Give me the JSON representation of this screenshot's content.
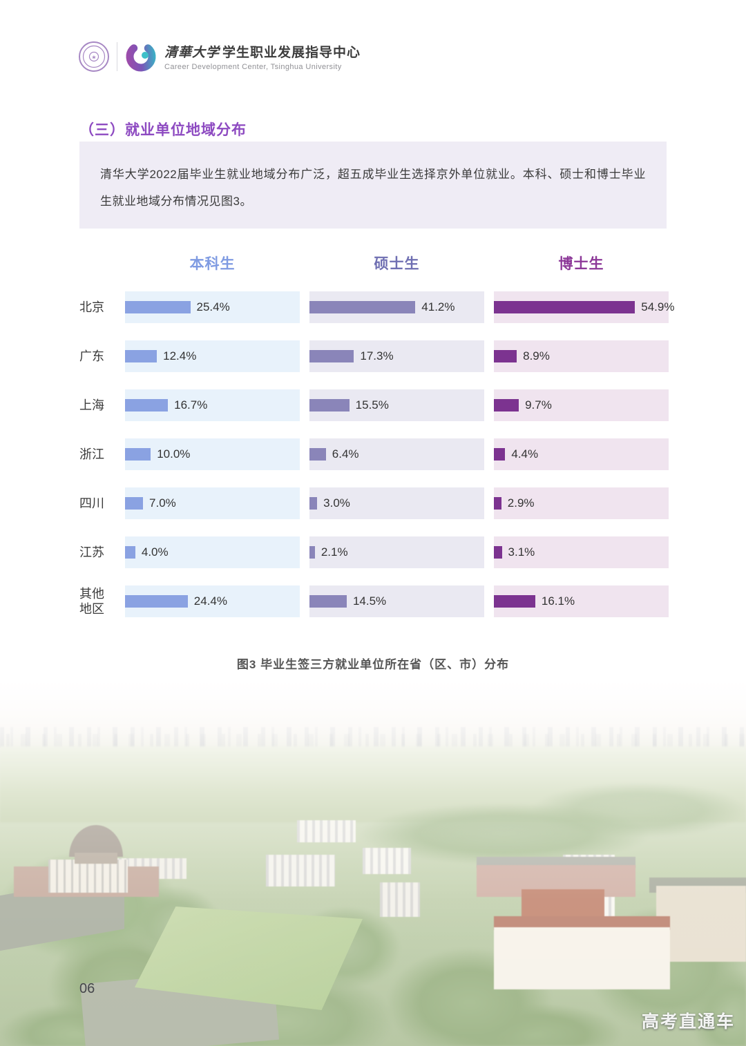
{
  "header": {
    "brand_calligraphy": "清華大学",
    "brand_dept": "学生职业发展指导中心",
    "brand_en": "Career Development Center, Tsinghua University"
  },
  "section": {
    "title": "（三）就业单位地域分布"
  },
  "intro": {
    "text": "清华大学2022届毕业生就业地域分布广泛，超五成毕业生选择京外单位就业。本科、硕士和博士毕业生就业地域分布情况见图3。"
  },
  "chart_data": {
    "type": "bar",
    "orientation": "horizontal",
    "title": "图3  毕业生签三方就业单位所在省（区、市）分布",
    "categories": [
      "北京",
      "广东",
      "上海",
      "浙江",
      "四川",
      "江苏",
      "其他地区"
    ],
    "series": [
      {
        "name": "本科生",
        "color": "#8aa2e2",
        "panel_color": "#e8f2fb",
        "label_color": "#7f9be2",
        "values": [
          25.4,
          12.4,
          16.7,
          10.0,
          7.0,
          4.0,
          24.4
        ]
      },
      {
        "name": "硕士生",
        "color": "#8a85b9",
        "panel_color": "#eae9f2",
        "label_color": "#6f6fb2",
        "values": [
          41.2,
          17.3,
          15.5,
          6.4,
          3.0,
          2.1,
          14.5
        ]
      },
      {
        "name": "博士生",
        "color": "#7c3390",
        "panel_color": "#f0e4ef",
        "label_color": "#8c3898",
        "values": [
          54.9,
          8.9,
          9.7,
          4.4,
          2.9,
          3.1,
          16.1
        ]
      }
    ],
    "value_suffix": "%",
    "xlim": [
      0,
      68
    ],
    "legend_position": "top",
    "grid": false
  },
  "footer": {
    "page_number": "06",
    "watermark": "高考直通车"
  }
}
